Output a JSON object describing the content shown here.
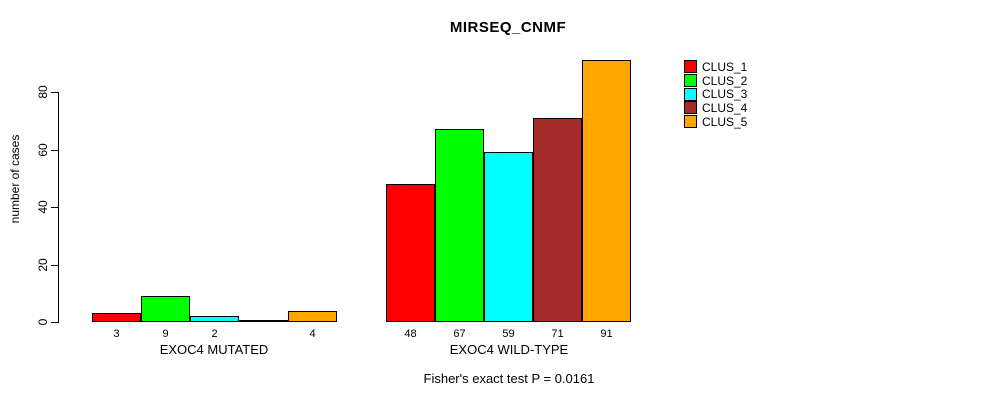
{
  "chart_data": {
    "type": "bar",
    "title": "MIRSEQ_CNMF",
    "ylabel": "number of cases",
    "xlabel": "",
    "ylim": [
      0,
      80
    ],
    "yticks": [
      0,
      20,
      40,
      60,
      80
    ],
    "grid": false,
    "legend_position": "top-right",
    "categories": [
      "EXOC4 MUTATED",
      "EXOC4 WILD-TYPE"
    ],
    "series": [
      {
        "name": "CLUS_1",
        "color": "#FF0000",
        "values": [
          3,
          48
        ]
      },
      {
        "name": "CLUS_2",
        "color": "#00FF00",
        "values": [
          9,
          67
        ]
      },
      {
        "name": "CLUS_3",
        "color": "#00FFFF",
        "values": [
          2,
          59
        ]
      },
      {
        "name": "CLUS_4",
        "color": "#A52A2A",
        "values": [
          0,
          71
        ]
      },
      {
        "name": "CLUS_5",
        "color": "#FFA500",
        "values": [
          4,
          91
        ]
      }
    ],
    "bar_value_labels_note": "zero values show no label",
    "caption": "Fisher's exact test P = 0.0161"
  }
}
